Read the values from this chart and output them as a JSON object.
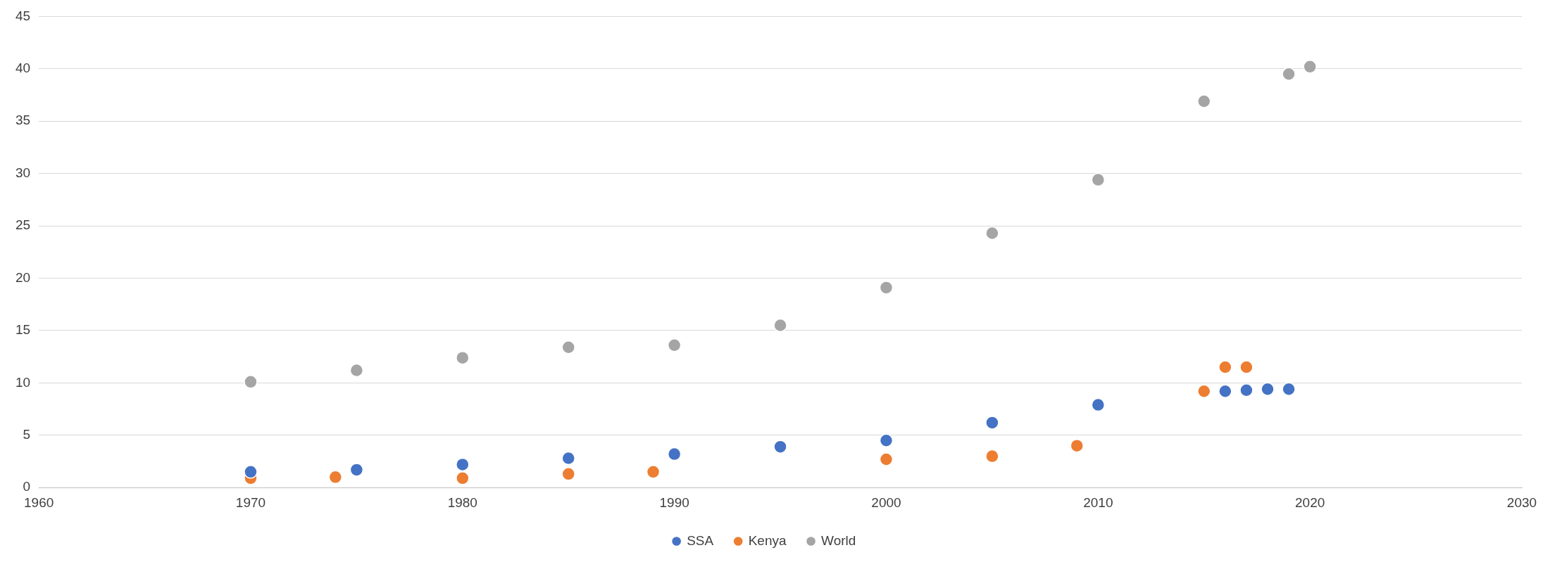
{
  "chart_data": {
    "type": "scatter",
    "xlim": [
      1960,
      2030
    ],
    "xticks": [
      1960,
      1970,
      1980,
      1990,
      2000,
      2010,
      2020,
      2030
    ],
    "ylim": [
      0,
      45
    ],
    "yticks": [
      0,
      5,
      10,
      15,
      20,
      25,
      30,
      35,
      40,
      45
    ],
    "grid": "y",
    "legend": "bottom",
    "marker": "circle",
    "series": [
      {
        "name": "SSA",
        "color": "#4472c4",
        "x": [
          1970,
          1975,
          1980,
          1985,
          1990,
          1995,
          2000,
          2005,
          2010,
          2016,
          2017,
          2018,
          2019
        ],
        "values": [
          1.5,
          1.7,
          2.2,
          2.8,
          3.2,
          3.9,
          4.5,
          6.2,
          7.9,
          9.2,
          9.3,
          9.4,
          9.4
        ]
      },
      {
        "name": "Kenya",
        "color": "#ed7d31",
        "x": [
          1970,
          1974,
          1980,
          1985,
          1989,
          2000,
          2005,
          2009,
          2015,
          2016,
          2017
        ],
        "values": [
          0.9,
          1.0,
          0.9,
          1.3,
          1.5,
          2.7,
          3.0,
          4.0,
          9.2,
          11.5,
          11.5
        ]
      },
      {
        "name": "World",
        "color": "#a5a5a5",
        "x": [
          1970,
          1975,
          1980,
          1985,
          1990,
          1995,
          2000,
          2005,
          2010,
          2015,
          2019,
          2020
        ],
        "values": [
          10.1,
          11.2,
          12.4,
          13.4,
          13.6,
          15.5,
          19.1,
          24.3,
          29.4,
          36.9,
          39.5,
          40.2
        ]
      }
    ]
  }
}
